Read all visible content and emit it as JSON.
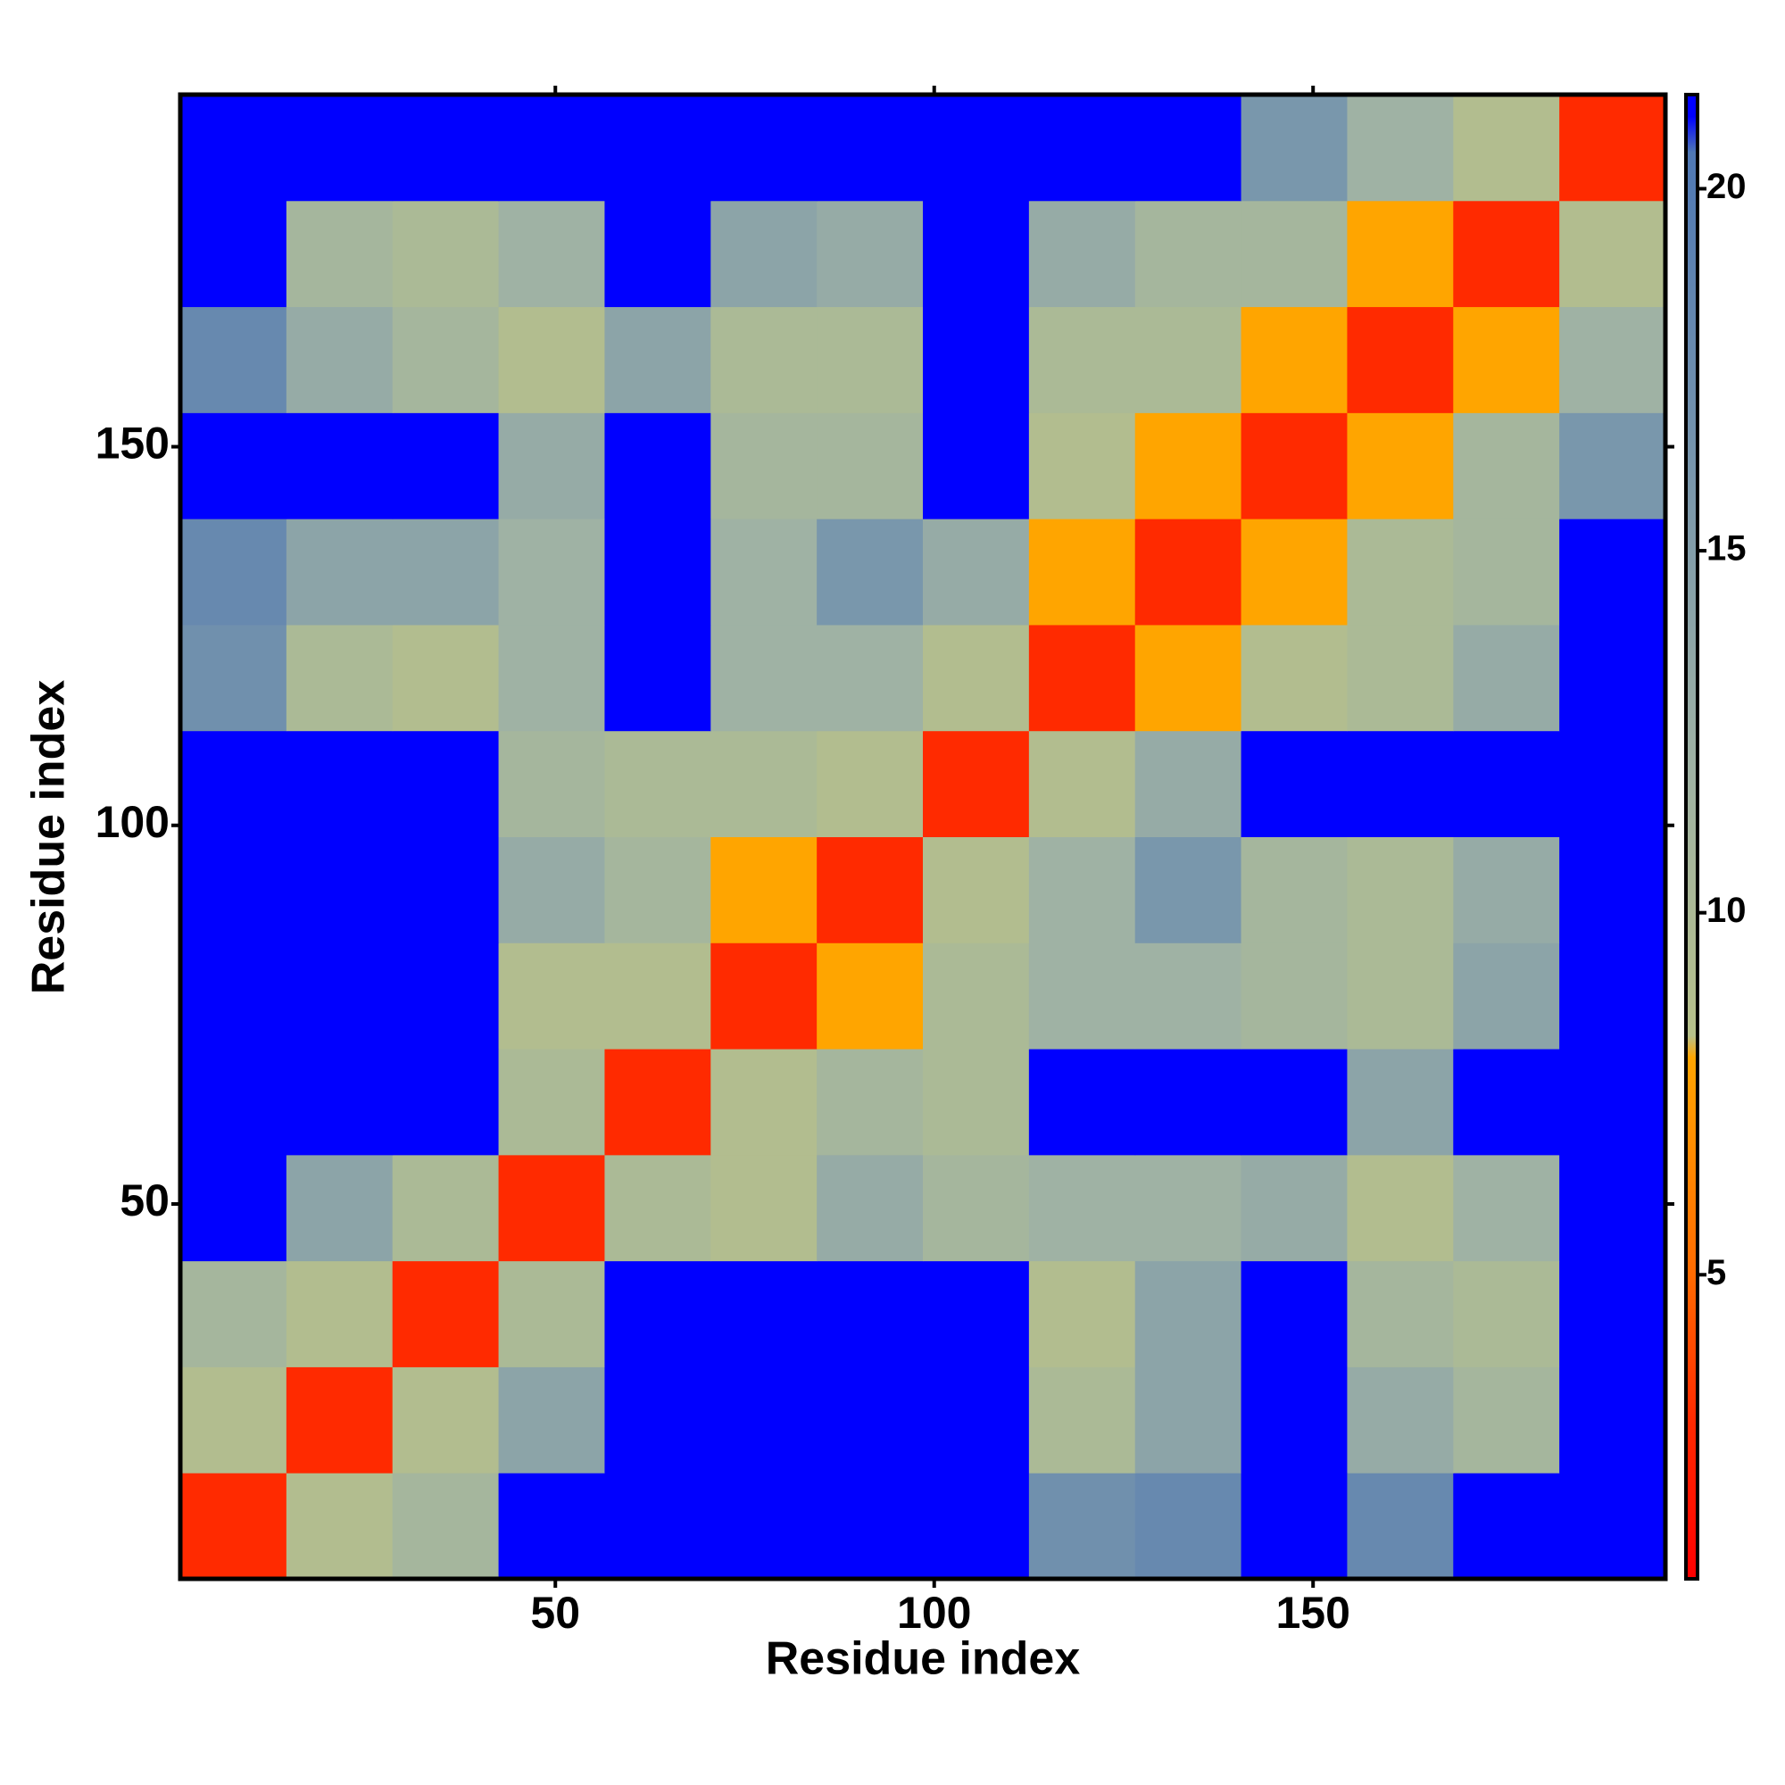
{
  "chart_data": {
    "type": "heatmap",
    "x_label": "Residue index",
    "y_label": "Residue index",
    "xbins": [
      0.5,
      14.5,
      28.5,
      42.5,
      56.5,
      70.5,
      84.5,
      98.5,
      112.5,
      126.5,
      140.5,
      154.5,
      168.5,
      182.5,
      196.5
    ],
    "ybins": [
      0.5,
      14.5,
      28.5,
      42.5,
      56.5,
      70.5,
      84.5,
      98.5,
      112.5,
      126.5,
      140.5,
      154.5,
      168.5,
      182.5,
      196.5
    ],
    "z": [
      [
        3,
        9,
        11,
        21,
        21,
        21,
        21,
        21,
        17,
        18,
        21,
        18,
        21,
        21
      ],
      [
        9,
        3,
        9,
        14,
        21,
        21,
        21,
        21,
        10,
        14,
        21,
        13,
        11,
        21
      ],
      [
        11,
        9,
        3,
        10,
        21,
        21,
        21,
        21,
        9,
        14,
        21,
        11,
        10,
        21
      ],
      [
        21,
        14,
        10,
        3,
        10,
        9,
        13,
        11,
        12,
        12,
        13,
        9,
        12,
        21
      ],
      [
        21,
        21,
        21,
        10,
        3,
        9,
        11,
        10,
        21,
        21,
        21,
        14,
        21,
        21
      ],
      [
        21,
        21,
        21,
        9,
        9,
        3,
        8,
        10,
        12,
        12,
        11,
        10,
        14,
        21
      ],
      [
        21,
        21,
        21,
        13,
        11,
        8,
        3,
        9,
        12,
        16,
        11,
        10,
        13,
        21
      ],
      [
        21,
        21,
        21,
        11,
        10,
        10,
        9,
        3,
        9,
        13,
        21,
        21,
        21,
        21
      ],
      [
        17,
        10,
        9,
        12,
        21,
        12,
        12,
        9,
        3,
        8,
        9,
        10,
        13,
        21
      ],
      [
        18,
        14,
        14,
        12,
        21,
        12,
        16,
        13,
        8,
        3,
        8,
        10,
        11,
        21
      ],
      [
        21,
        21,
        21,
        13,
        21,
        11,
        11,
        21,
        9,
        8,
        3,
        8,
        11,
        16
      ],
      [
        18,
        13,
        11,
        9,
        14,
        10,
        10,
        21,
        10,
        10,
        8,
        3,
        8,
        12
      ],
      [
        21,
        11,
        10,
        12,
        21,
        14,
        13,
        21,
        13,
        11,
        11,
        8,
        3,
        9
      ],
      [
        21,
        21,
        21,
        21,
        21,
        21,
        21,
        21,
        21,
        21,
        16,
        12,
        9,
        3
      ]
    ],
    "xlim": [
      0.5,
      196.5
    ],
    "ylim": [
      0.5,
      196.5
    ],
    "xticks": [
      50,
      100,
      150
    ],
    "yticks": [
      50,
      100,
      150
    ],
    "zlim": [
      0.8,
      21.3
    ],
    "zticks": [
      5,
      10,
      15,
      20
    ],
    "colorscale": [
      [
        0.8,
        "#ff0000"
      ],
      [
        3,
        "#ff2a00"
      ],
      [
        5,
        "#ff6a00"
      ],
      [
        8,
        "#ffa500"
      ],
      [
        8.3,
        "#b6c08a"
      ],
      [
        12,
        "#9fb2a4"
      ],
      [
        20.5,
        "#4f78b4"
      ],
      [
        21,
        "#0000ff"
      ]
    ]
  }
}
